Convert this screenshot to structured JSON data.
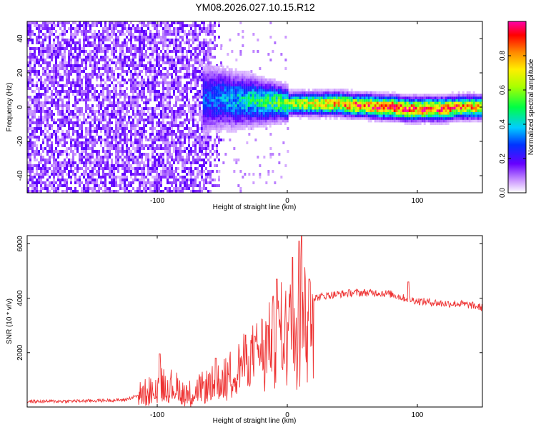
{
  "title": "YM08.2026.027.10.15.R12",
  "chart_data": [
    {
      "type": "heatmap",
      "xlabel": "Height of straight line (km)",
      "ylabel": "Frequency (Hz)",
      "xlim": [
        -200,
        150
      ],
      "ylim": [
        -50,
        50
      ],
      "xticks": [
        -100,
        0,
        100
      ],
      "yticks": [
        -40,
        -20,
        0,
        20,
        40
      ],
      "colorbar": {
        "label": "Normalized spectral amplitude",
        "range": [
          0,
          1
        ],
        "ticks": [
          0.0,
          0.2,
          0.4,
          0.6,
          0.8
        ],
        "tick_labels": [
          "0.0",
          "0.2",
          "0.4",
          "0.6",
          "0.8"
        ]
      },
      "noise_region": {
        "x_from": -200,
        "x_to": -63
      },
      "ridge": {
        "x": [
          -65,
          -50,
          -40,
          -30,
          -20,
          -10,
          0,
          10,
          20,
          30,
          40,
          50,
          60,
          70,
          80,
          90,
          100,
          110,
          120,
          130,
          140,
          150
        ],
        "frequency": [
          5,
          5,
          4,
          4,
          3,
          3,
          2,
          2,
          2,
          2,
          2,
          1,
          1,
          0,
          0,
          -1,
          -1,
          -1,
          -1,
          0,
          0,
          0
        ],
        "amplitude": [
          0.3,
          0.35,
          0.4,
          0.45,
          0.5,
          0.55,
          0.6,
          0.7,
          0.75,
          0.8,
          0.82,
          0.88,
          0.9,
          0.95,
          0.95,
          0.95,
          0.9,
          0.92,
          0.9,
          0.85,
          0.8,
          0.8
        ]
      }
    },
    {
      "type": "line",
      "xlabel": "Height of straight line (km)",
      "ylabel": "SNR (10 * v/v)",
      "xlim": [
        -200,
        150
      ],
      "ylim": [
        0,
        6300
      ],
      "xticks": [
        -100,
        0,
        100
      ],
      "yticks": [
        2000,
        4000,
        6000
      ],
      "color": "#ee3333",
      "series": [
        {
          "x": [
            -200,
            -180,
            -160,
            -140,
            -125,
            -110,
            -100,
            -95,
            -90,
            -80,
            -75,
            -70,
            -60,
            -50,
            -45,
            -40,
            -35,
            -30,
            -25,
            -20,
            -15,
            -10,
            -5,
            0,
            5,
            10,
            15,
            20,
            25,
            30,
            40,
            50,
            60,
            70,
            80,
            90,
            95,
            100,
            110,
            120,
            130,
            140,
            150
          ],
          "values": [
            200,
            210,
            220,
            240,
            260,
            500,
            700,
            900,
            800,
            600,
            500,
            600,
            800,
            1000,
            1200,
            1400,
            1600,
            1800,
            2000,
            2200,
            2400,
            2700,
            3000,
            2900,
            3300,
            3800,
            3700,
            4000,
            4050,
            4100,
            4150,
            4200,
            4200,
            4200,
            4150,
            4000,
            3950,
            3900,
            3850,
            3800,
            3800,
            3750,
            3650
          ],
          "spikes": [
            {
              "x": -98,
              "value": 1950
            },
            {
              "x": -55,
              "value": 1800
            },
            {
              "x": -25,
              "value": 2600
            },
            {
              "x": -15,
              "value": 3000
            },
            {
              "x": -8,
              "value": 4700
            },
            {
              "x": 4,
              "value": 5500
            },
            {
              "x": 9,
              "value": 6100
            },
            {
              "x": 11,
              "value": 6300
            },
            {
              "x": 17,
              "value": 4700
            },
            {
              "x": 93,
              "value": 4600
            }
          ]
        }
      ]
    }
  ]
}
